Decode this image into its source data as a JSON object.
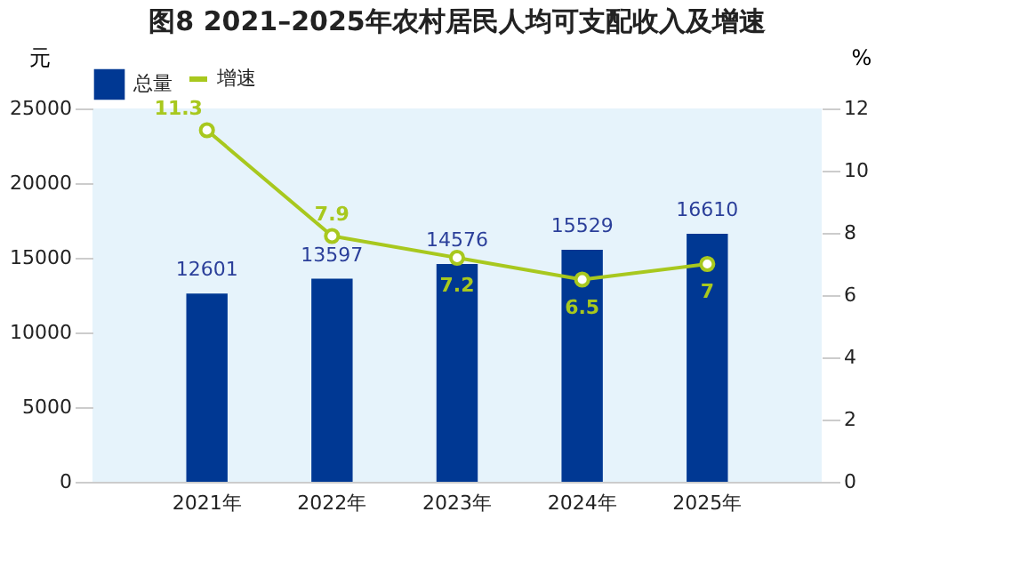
{
  "chart_data": {
    "type": "bar",
    "title": "图8  2021–2025年农村居民人均可支配收入及增速",
    "ylabel": "元",
    "y2label": "%",
    "categories": [
      "2021年",
      "2022年",
      "2023年",
      "2024年",
      "2025年"
    ],
    "series": [
      {
        "name": "总量",
        "type": "bar",
        "color": "#003893",
        "values": [
          12601,
          13597,
          14576,
          15529,
          16610
        ]
      },
      {
        "name": "增速",
        "type": "line",
        "axis": "y2",
        "color": "#a8c81e",
        "marker": "circle",
        "values": [
          11.3,
          7.9,
          7.2,
          6.5,
          7
        ]
      }
    ],
    "ylim": [
      0,
      25000
    ],
    "yticks": [
      0,
      5000,
      10000,
      15000,
      20000,
      25000
    ],
    "y2lim": [
      0,
      12
    ],
    "y2ticks": [
      0,
      2,
      4,
      6,
      8,
      10,
      12
    ],
    "data_labels": true,
    "grid": false,
    "legend": "top"
  }
}
